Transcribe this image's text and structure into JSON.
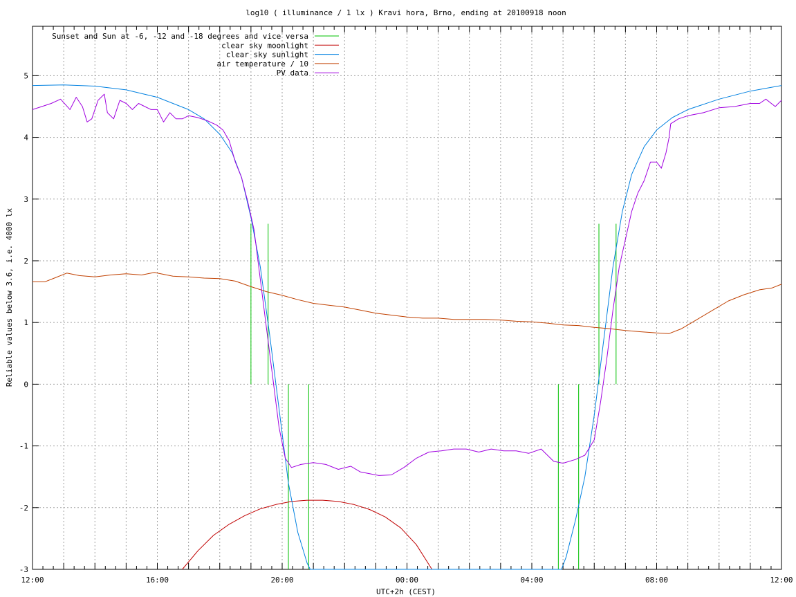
{
  "chart_data": {
    "type": "line",
    "title": "log10 ( illuminance / 1 lx ) Kravi hora, Brno, ending at 20100918 noon",
    "xlabel": "UTC+2h (CEST)",
    "ylabel": "Reliable values below 3.6, i.e. 4000 lx",
    "xlim": [
      0,
      24
    ],
    "ylim": [
      -3,
      5.8
    ],
    "x_unit": "hours since 12:00 CEST",
    "x_ticks": [
      {
        "x": 0,
        "label": "12:00"
      },
      {
        "x": 4,
        "label": "16:00"
      },
      {
        "x": 8,
        "label": "20:00"
      },
      {
        "x": 12,
        "label": "00:00"
      },
      {
        "x": 16,
        "label": "04:00"
      },
      {
        "x": 20,
        "label": "08:00"
      },
      {
        "x": 24,
        "label": "12:00"
      }
    ],
    "y_ticks": [
      -3,
      -2,
      -1,
      0,
      1,
      2,
      3,
      4,
      5
    ],
    "grid": true,
    "legend_position": "top-left",
    "colors": {
      "twilight": "#00c000",
      "moon": "#c00000",
      "sun": "#0080e0",
      "temp": "#c04000",
      "pv": "#a000e0"
    },
    "twilight_markers": {
      "name": "Sunset and Sun at -6, -12 and -18 degrees and vice versa",
      "lines": [
        {
          "x": 7.0,
          "y_from": 0,
          "y_to": 2.6
        },
        {
          "x": 7.55,
          "y_from": 0,
          "y_to": 2.6
        },
        {
          "x": 8.2,
          "y_from": -3,
          "y_to": 0
        },
        {
          "x": 8.85,
          "y_from": -3,
          "y_to": 0
        },
        {
          "x": 16.85,
          "y_from": -3,
          "y_to": 0
        },
        {
          "x": 17.5,
          "y_from": -3,
          "y_to": 0
        },
        {
          "x": 18.15,
          "y_from": 0,
          "y_to": 2.6
        },
        {
          "x": 18.7,
          "y_from": 0,
          "y_to": 2.6
        }
      ]
    },
    "series": [
      {
        "name": "clear sky moonlight",
        "key": "moon",
        "points": [
          [
            4.8,
            -3.0
          ],
          [
            5.3,
            -2.7
          ],
          [
            5.8,
            -2.45
          ],
          [
            6.3,
            -2.27
          ],
          [
            6.8,
            -2.13
          ],
          [
            7.3,
            -2.02
          ],
          [
            7.8,
            -1.95
          ],
          [
            8.3,
            -1.9
          ],
          [
            8.8,
            -1.88
          ],
          [
            9.3,
            -1.88
          ],
          [
            9.8,
            -1.9
          ],
          [
            10.3,
            -1.95
          ],
          [
            10.8,
            -2.03
          ],
          [
            11.3,
            -2.15
          ],
          [
            11.8,
            -2.33
          ],
          [
            12.3,
            -2.6
          ],
          [
            12.8,
            -3.0
          ]
        ]
      },
      {
        "name": "clear sky sunlight",
        "key": "sun",
        "points": [
          [
            0,
            4.84
          ],
          [
            1,
            4.85
          ],
          [
            2,
            4.83
          ],
          [
            3,
            4.77
          ],
          [
            4,
            4.65
          ],
          [
            5,
            4.45
          ],
          [
            5.5,
            4.3
          ],
          [
            6,
            4.05
          ],
          [
            6.4,
            3.75
          ],
          [
            6.7,
            3.35
          ],
          [
            7.0,
            2.7
          ],
          [
            7.3,
            1.9
          ],
          [
            7.6,
            0.8
          ],
          [
            7.9,
            -0.4
          ],
          [
            8.2,
            -1.6
          ],
          [
            8.5,
            -2.4
          ],
          [
            8.8,
            -2.9
          ],
          [
            8.9,
            -3.0
          ],
          [
            16.95,
            -3.0
          ],
          [
            17.1,
            -2.8
          ],
          [
            17.4,
            -2.2
          ],
          [
            17.7,
            -1.5
          ],
          [
            18.0,
            -0.5
          ],
          [
            18.3,
            0.7
          ],
          [
            18.6,
            1.9
          ],
          [
            18.9,
            2.8
          ],
          [
            19.2,
            3.4
          ],
          [
            19.6,
            3.85
          ],
          [
            20,
            4.12
          ],
          [
            20.5,
            4.32
          ],
          [
            21,
            4.45
          ],
          [
            22,
            4.62
          ],
          [
            23,
            4.75
          ],
          [
            24,
            4.84
          ]
        ]
      },
      {
        "name": "air temperature / 10",
        "key": "temp",
        "points": [
          [
            0,
            1.66
          ],
          [
            0.4,
            1.66
          ],
          [
            0.7,
            1.72
          ],
          [
            1.1,
            1.8
          ],
          [
            1.5,
            1.76
          ],
          [
            2,
            1.74
          ],
          [
            2.5,
            1.77
          ],
          [
            3,
            1.79
          ],
          [
            3.5,
            1.77
          ],
          [
            3.9,
            1.81
          ],
          [
            4.5,
            1.75
          ],
          [
            5,
            1.74
          ],
          [
            5.5,
            1.72
          ],
          [
            6,
            1.71
          ],
          [
            6.5,
            1.67
          ],
          [
            7,
            1.58
          ],
          [
            7.5,
            1.5
          ],
          [
            8,
            1.44
          ],
          [
            8.5,
            1.37
          ],
          [
            9,
            1.31
          ],
          [
            9.5,
            1.28
          ],
          [
            10,
            1.25
          ],
          [
            10.5,
            1.2
          ],
          [
            11,
            1.15
          ],
          [
            11.5,
            1.12
          ],
          [
            12,
            1.09
          ],
          [
            12.5,
            1.07
          ],
          [
            13,
            1.07
          ],
          [
            13.5,
            1.05
          ],
          [
            14,
            1.05
          ],
          [
            14.5,
            1.05
          ],
          [
            15,
            1.04
          ],
          [
            15.5,
            1.02
          ],
          [
            16,
            1.01
          ],
          [
            16.5,
            0.99
          ],
          [
            17,
            0.96
          ],
          [
            17.5,
            0.95
          ],
          [
            18,
            0.92
          ],
          [
            18.5,
            0.9
          ],
          [
            19,
            0.87
          ],
          [
            19.5,
            0.85
          ],
          [
            20,
            0.83
          ],
          [
            20.4,
            0.82
          ],
          [
            20.8,
            0.9
          ],
          [
            21.3,
            1.05
          ],
          [
            21.8,
            1.2
          ],
          [
            22.3,
            1.35
          ],
          [
            22.8,
            1.45
          ],
          [
            23.3,
            1.53
          ],
          [
            23.7,
            1.56
          ],
          [
            24,
            1.62
          ]
        ]
      },
      {
        "name": "PV data",
        "key": "pv",
        "points": [
          [
            0,
            4.45
          ],
          [
            0.3,
            4.5
          ],
          [
            0.6,
            4.55
          ],
          [
            0.9,
            4.62
          ],
          [
            1.2,
            4.45
          ],
          [
            1.4,
            4.65
          ],
          [
            1.6,
            4.5
          ],
          [
            1.75,
            4.25
          ],
          [
            1.9,
            4.3
          ],
          [
            2.1,
            4.6
          ],
          [
            2.3,
            4.7
          ],
          [
            2.4,
            4.4
          ],
          [
            2.6,
            4.3
          ],
          [
            2.8,
            4.6
          ],
          [
            3.0,
            4.55
          ],
          [
            3.2,
            4.45
          ],
          [
            3.4,
            4.55
          ],
          [
            3.6,
            4.5
          ],
          [
            3.8,
            4.45
          ],
          [
            4.0,
            4.45
          ],
          [
            4.2,
            4.25
          ],
          [
            4.4,
            4.4
          ],
          [
            4.6,
            4.3
          ],
          [
            4.8,
            4.3
          ],
          [
            5.0,
            4.35
          ],
          [
            5.3,
            4.32
          ],
          [
            5.6,
            4.27
          ],
          [
            5.9,
            4.2
          ],
          [
            6.1,
            4.12
          ],
          [
            6.3,
            3.95
          ],
          [
            6.5,
            3.6
          ],
          [
            6.7,
            3.35
          ],
          [
            6.9,
            2.95
          ],
          [
            7.1,
            2.5
          ],
          [
            7.3,
            1.7
          ],
          [
            7.5,
            0.9
          ],
          [
            7.7,
            0.1
          ],
          [
            7.9,
            -0.7
          ],
          [
            8.1,
            -1.2
          ],
          [
            8.3,
            -1.35
          ],
          [
            8.6,
            -1.3
          ],
          [
            9.0,
            -1.27
          ],
          [
            9.4,
            -1.3
          ],
          [
            9.8,
            -1.38
          ],
          [
            10.2,
            -1.33
          ],
          [
            10.5,
            -1.42
          ],
          [
            10.8,
            -1.45
          ],
          [
            11.1,
            -1.48
          ],
          [
            11.5,
            -1.47
          ],
          [
            11.9,
            -1.35
          ],
          [
            12.3,
            -1.2
          ],
          [
            12.7,
            -1.1
          ],
          [
            13.1,
            -1.08
          ],
          [
            13.5,
            -1.05
          ],
          [
            13.9,
            -1.05
          ],
          [
            14.3,
            -1.1
          ],
          [
            14.7,
            -1.05
          ],
          [
            15.1,
            -1.08
          ],
          [
            15.5,
            -1.08
          ],
          [
            15.9,
            -1.12
          ],
          [
            16.3,
            -1.05
          ],
          [
            16.7,
            -1.25
          ],
          [
            17.0,
            -1.28
          ],
          [
            17.4,
            -1.22
          ],
          [
            17.7,
            -1.15
          ],
          [
            18.0,
            -0.9
          ],
          [
            18.2,
            -0.3
          ],
          [
            18.4,
            0.4
          ],
          [
            18.6,
            1.2
          ],
          [
            18.8,
            1.9
          ],
          [
            19.0,
            2.35
          ],
          [
            19.2,
            2.8
          ],
          [
            19.4,
            3.1
          ],
          [
            19.6,
            3.3
          ],
          [
            19.8,
            3.6
          ],
          [
            20.0,
            3.6
          ],
          [
            20.15,
            3.5
          ],
          [
            20.3,
            3.75
          ],
          [
            20.4,
            4.0
          ],
          [
            20.45,
            4.22
          ],
          [
            20.7,
            4.3
          ],
          [
            21,
            4.35
          ],
          [
            21.5,
            4.4
          ],
          [
            22,
            4.48
          ],
          [
            22.5,
            4.5
          ],
          [
            23,
            4.55
          ],
          [
            23.3,
            4.55
          ],
          [
            23.5,
            4.62
          ],
          [
            23.8,
            4.5
          ],
          [
            24,
            4.6
          ]
        ]
      }
    ]
  }
}
